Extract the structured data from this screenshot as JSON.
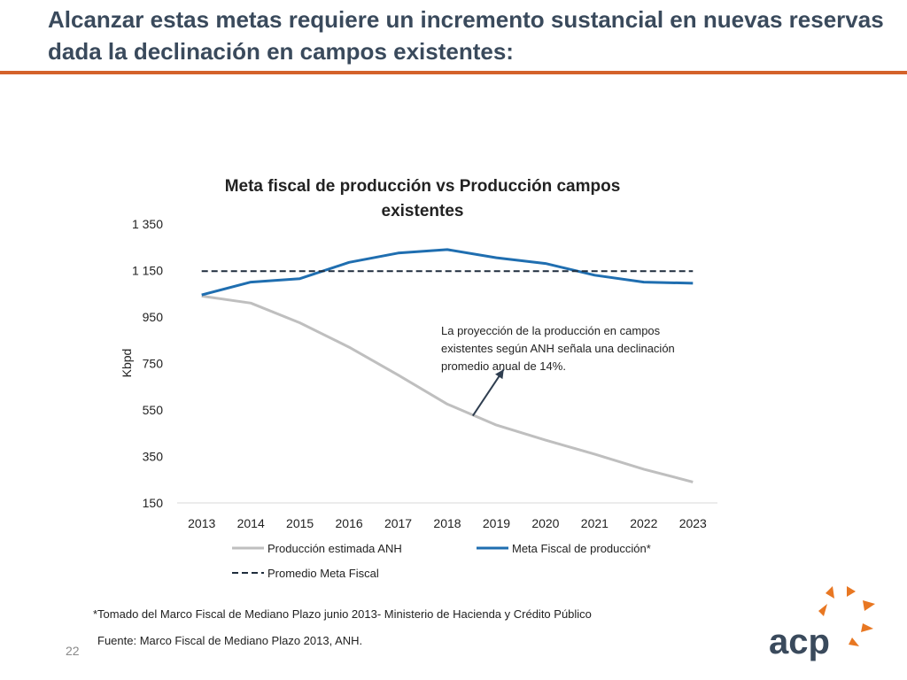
{
  "slide": {
    "title_line1": "Alcanzar estas metas requiere un incremento sustancial en nuevas reservas",
    "title_line2": "dada la declinación en campos existentes:",
    "page_number": "22",
    "footnote": "*Tomado del Marco Fiscal de Mediano Plazo junio 2013- Ministerio de Hacienda y Crédito Público",
    "source": "Fuente: Marco Fiscal de Mediano Plazo 2013, ANH.",
    "logo_text": "acp",
    "colors": {
      "title": "#3a4a5c",
      "accent": "#d4622a",
      "logo_orange": "#e87722",
      "logo_text": "#3a4a5c"
    }
  },
  "chart_data": {
    "type": "line",
    "title_line1": "Meta fiscal de producción vs Producción campos",
    "title_line2": "existentes",
    "ylabel": "Kbpd",
    "xlabel": "",
    "ylim": [
      150,
      1350
    ],
    "yticks": [
      150,
      350,
      550,
      750,
      950,
      1150,
      1350
    ],
    "ytick_labels": [
      "150",
      "350",
      "550",
      "750",
      "950",
      "1 150",
      "1 350"
    ],
    "categories": [
      "2013",
      "2014",
      "2015",
      "2016",
      "2017",
      "2018",
      "2019",
      "2020",
      "2021",
      "2022",
      "2023"
    ],
    "series": [
      {
        "name": "Producción estimada ANH",
        "color": "#bfbfbf",
        "style": "solid",
        "values": [
          1040,
          1010,
          925,
          820,
          700,
          575,
          485,
          420,
          360,
          295,
          240
        ]
      },
      {
        "name": "Meta Fiscal de producción*",
        "color": "#1f6eb0",
        "style": "solid",
        "values": [
          1045,
          1100,
          1115,
          1185,
          1225,
          1240,
          1205,
          1180,
          1130,
          1100,
          1095
        ]
      },
      {
        "name": "Promedio Meta Fiscal",
        "color": "#1f2d3d",
        "style": "dashed",
        "values": [
          1147,
          1147,
          1147,
          1147,
          1147,
          1147,
          1147,
          1147,
          1147,
          1147,
          1147
        ]
      }
    ],
    "legend_position": "bottom",
    "annotation": {
      "lines": [
        "La proyección de la producción en campos",
        "existentes según ANH señala una declinación",
        "promedio anual de 14%."
      ],
      "arrow_from": {
        "x_category": "2019",
        "x_offset": -0.48,
        "y": 525
      },
      "arrow_to": {
        "x_category": "2019",
        "x_offset": 0.15,
        "y": 725
      }
    }
  }
}
